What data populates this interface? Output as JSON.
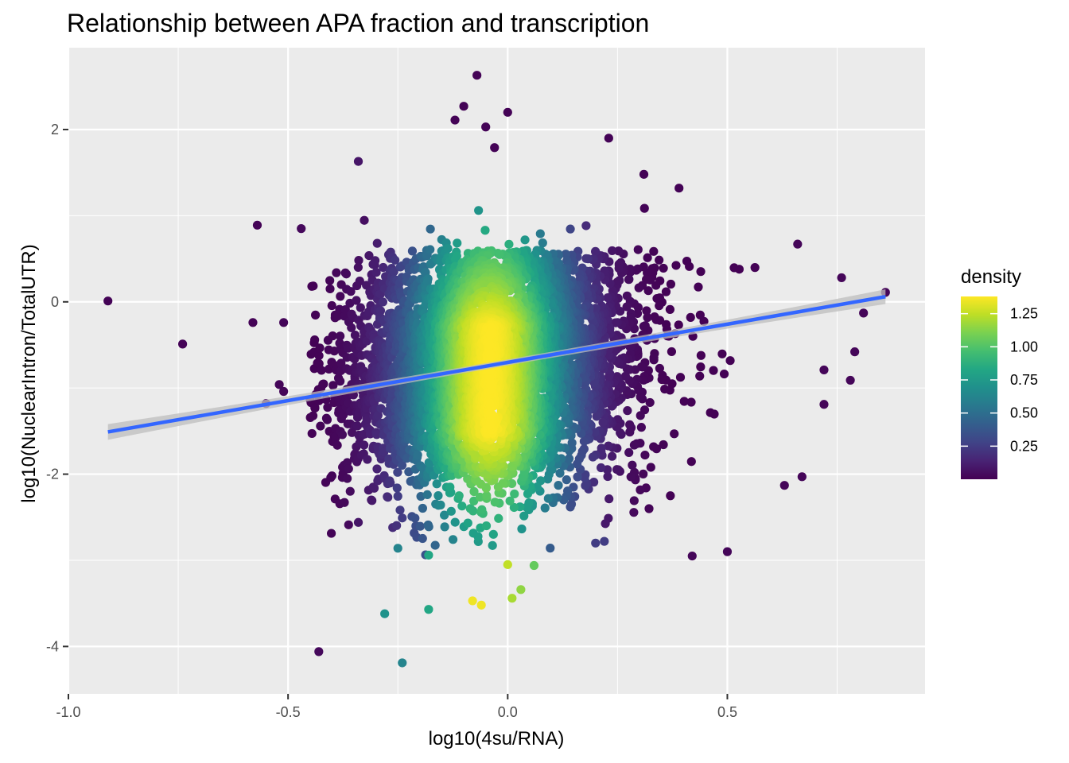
{
  "chart_data": {
    "type": "scatter",
    "title": "Relationship between APA fraction and transcription",
    "xlabel": "log10(4su/RNA)",
    "ylabel": "log10(NuclearIntron/TotalUTR)",
    "xlim": [
      -1.0,
      0.95
    ],
    "ylim": [
      -4.55,
      2.95
    ],
    "x_ticks": [
      -1.0,
      -0.5,
      0.0,
      0.5
    ],
    "x_tick_labels": [
      "-1.0",
      "-0.5",
      "0.0",
      "0.5"
    ],
    "y_ticks": [
      -4,
      -2,
      0,
      2
    ],
    "y_tick_labels": [
      "-4",
      "-2",
      "0",
      "2"
    ],
    "grid": true,
    "background": "#ebebeb",
    "grid_color": "#ffffff",
    "colormap": "viridis",
    "legend": {
      "title": "density",
      "position": "right",
      "range": [
        0.0,
        1.38
      ],
      "breaks": [
        0.25,
        0.5,
        0.75,
        1.0,
        1.25
      ],
      "labels": [
        "0.25",
        "0.50",
        "0.75",
        "1.00",
        "1.25"
      ]
    },
    "fit_line": {
      "method": "linear regression with confidence band",
      "color": "#3366ff",
      "band_color": "#bdbdbd",
      "x": [
        -0.91,
        0.86
      ],
      "y": [
        -1.51,
        0.06
      ]
    },
    "density_model": {
      "note": "point color encodes local density, highest near x = -0.04",
      "center_x": -0.04,
      "max_density": 1.38
    },
    "points": [
      {
        "x": -0.91,
        "y": 0.01,
        "density": 0.01
      },
      {
        "x": -0.74,
        "y": -0.49,
        "density": 0.01
      },
      {
        "x": -0.58,
        "y": -0.24,
        "density": 0.01
      },
      {
        "x": -0.57,
        "y": 0.89,
        "density": 0.01
      },
      {
        "x": -0.55,
        "y": -1.18,
        "density": 0.02
      },
      {
        "x": -0.52,
        "y": -0.96,
        "density": 0.02
      },
      {
        "x": -0.51,
        "y": -1.04,
        "density": 0.02
      },
      {
        "x": -0.51,
        "y": -0.24,
        "density": 0.02
      },
      {
        "x": -0.47,
        "y": 0.85,
        "density": 0.03
      },
      {
        "x": -0.43,
        "y": -4.06,
        "density": 0.03
      },
      {
        "x": -0.34,
        "y": 1.63,
        "density": 0.08
      },
      {
        "x": -0.34,
        "y": -2.56,
        "density": 0.08
      },
      {
        "x": -0.28,
        "y": -3.62,
        "density": 0.7
      },
      {
        "x": -0.24,
        "y": -4.19,
        "density": 0.62
      },
      {
        "x": -0.25,
        "y": -2.86,
        "density": 0.62
      },
      {
        "x": -0.18,
        "y": -3.57,
        "density": 0.82
      },
      {
        "x": -0.18,
        "y": -2.94,
        "density": 0.82
      },
      {
        "x": -0.07,
        "y": 2.63,
        "density": 0.01
      },
      {
        "x": -0.1,
        "y": 2.27,
        "density": 0.01
      },
      {
        "x": -0.12,
        "y": 2.11,
        "density": 0.01
      },
      {
        "x": 0.0,
        "y": 2.2,
        "density": 0.01
      },
      {
        "x": -0.05,
        "y": 2.03,
        "density": 0.01
      },
      {
        "x": -0.03,
        "y": 1.79,
        "density": 0.01
      },
      {
        "x": 0.23,
        "y": 1.9,
        "density": 0.01
      },
      {
        "x": 0.31,
        "y": 1.48,
        "density": 0.01
      },
      {
        "x": 0.39,
        "y": 1.32,
        "density": 0.01
      },
      {
        "x": -0.08,
        "y": -3.47,
        "density": 1.35
      },
      {
        "x": -0.06,
        "y": -3.52,
        "density": 1.35
      },
      {
        "x": 0.01,
        "y": -3.44,
        "density": 1.2
      },
      {
        "x": 0.03,
        "y": -3.34,
        "density": 1.15
      },
      {
        "x": 0.0,
        "y": -3.05,
        "density": 1.25
      },
      {
        "x": 0.06,
        "y": -3.06,
        "density": 1.05
      },
      {
        "x": 0.2,
        "y": -2.8,
        "density": 0.25
      },
      {
        "x": 0.22,
        "y": -2.78,
        "density": 0.25
      },
      {
        "x": 0.42,
        "y": -2.95,
        "density": 0.02
      },
      {
        "x": 0.5,
        "y": -2.9,
        "density": 0.02
      },
      {
        "x": 0.63,
        "y": -2.13,
        "density": 0.02
      },
      {
        "x": 0.67,
        "y": -2.03,
        "density": 0.02
      },
      {
        "x": 0.72,
        "y": -0.79,
        "density": 0.02
      },
      {
        "x": 0.72,
        "y": -1.19,
        "density": 0.02
      },
      {
        "x": 0.78,
        "y": -0.91,
        "density": 0.02
      },
      {
        "x": 0.79,
        "y": -0.58,
        "density": 0.02
      },
      {
        "x": 0.81,
        "y": -0.13,
        "density": 0.02
      },
      {
        "x": 0.76,
        "y": 0.28,
        "density": 0.02
      },
      {
        "x": 0.66,
        "y": 0.67,
        "density": 0.02
      },
      {
        "x": 0.86,
        "y": 0.11,
        "density": 0.02
      }
    ]
  }
}
